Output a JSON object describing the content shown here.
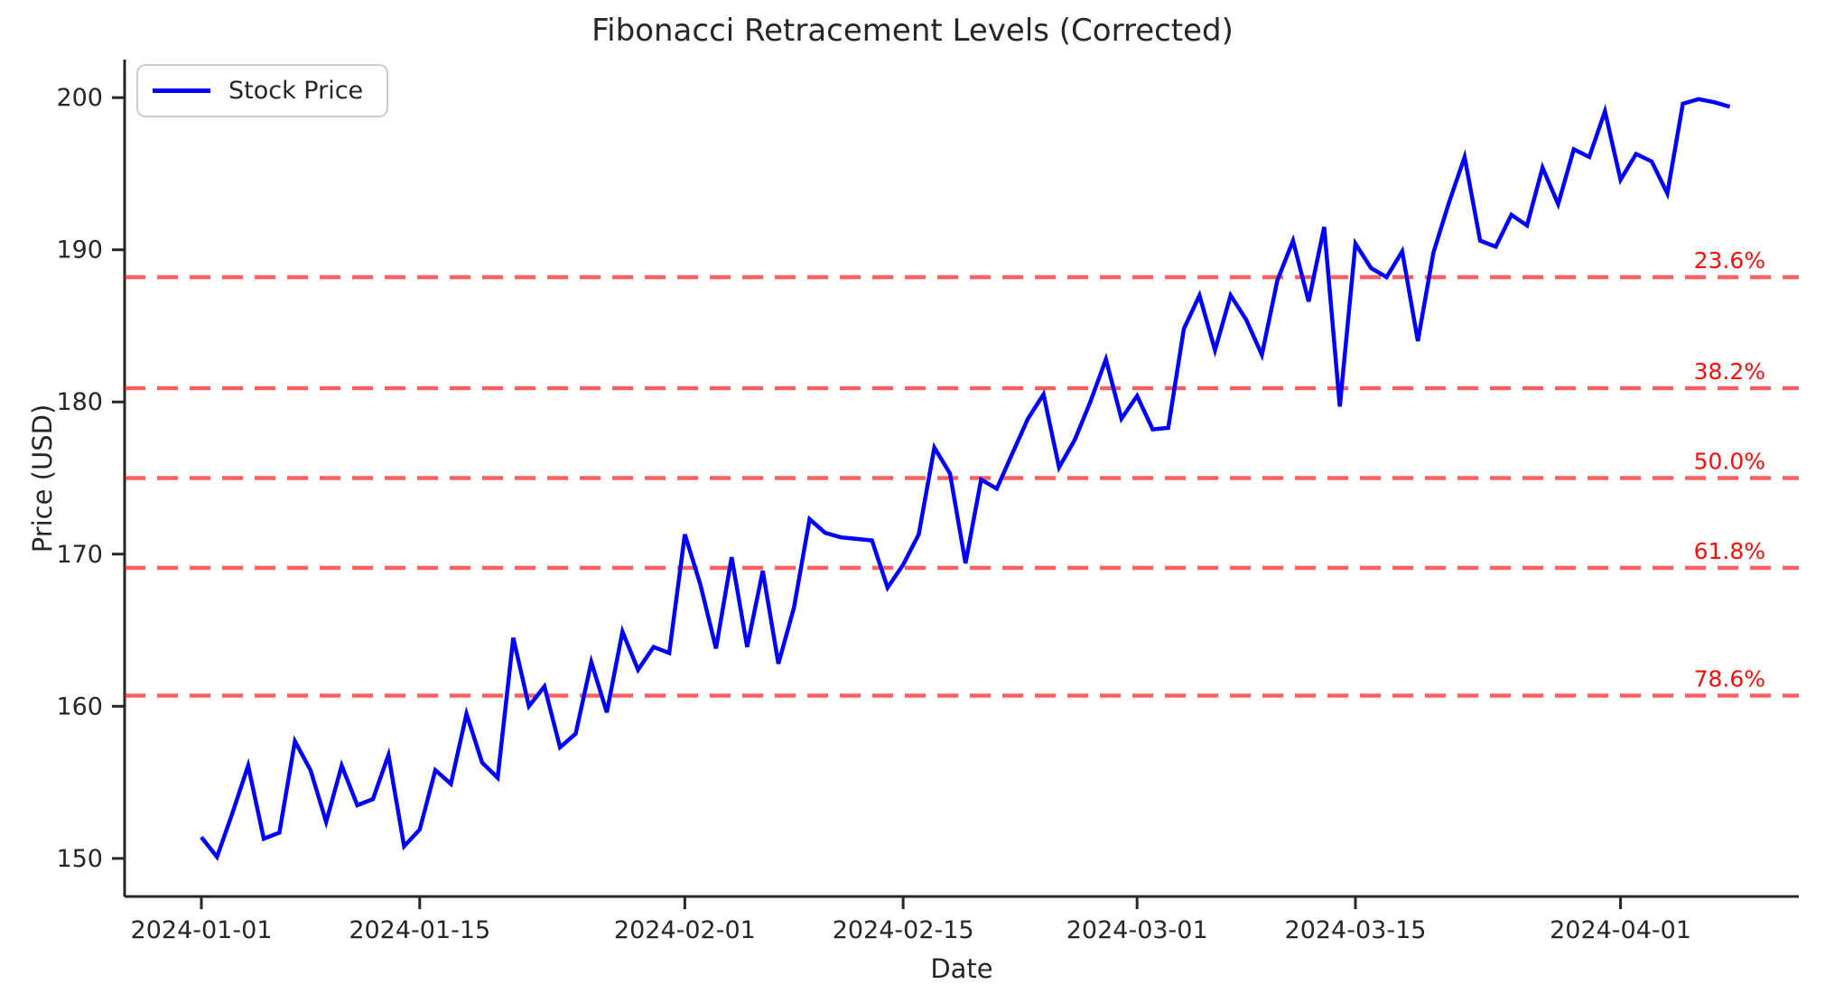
{
  "figure": {
    "title": "Fibonacci Retracement Levels (Corrected)",
    "xlabel": "Date",
    "ylabel": "Price (USD)",
    "legend": {
      "label": "Stock Price"
    }
  },
  "colors": {
    "price_line": "#0000ff",
    "fib_line": "rgba(255,0,0,0.62)",
    "fib_label": "#ff0b0b",
    "axis": "#262626",
    "tick_label": "#262626",
    "legend_border": "#cccccc"
  },
  "chart_data": {
    "type": "line",
    "title": "Fibonacci Retracement Levels (Corrected)",
    "xlabel": "Date",
    "ylabel": "Price (USD)",
    "legend_position": "upper left",
    "grid": false,
    "start_date": "2024-01-01",
    "frequency": "daily",
    "end_date": "2024-04-08",
    "ylim": [
      147.5,
      202.5
    ],
    "yticks": [
      150,
      160,
      170,
      180,
      190,
      200
    ],
    "xticks": [
      {
        "day": 0,
        "label": "2024-01-01"
      },
      {
        "day": 14,
        "label": "2024-01-15"
      },
      {
        "day": 31,
        "label": "2024-02-01"
      },
      {
        "day": 45,
        "label": "2024-02-15"
      },
      {
        "day": 60,
        "label": "2024-03-01"
      },
      {
        "day": 74,
        "label": "2024-03-15"
      },
      {
        "day": 91,
        "label": "2024-04-01"
      }
    ],
    "series": [
      {
        "name": "Stock Price",
        "style": "solid",
        "values": [
          151.4,
          150.1,
          153.0,
          156.1,
          151.3,
          151.7,
          157.7,
          155.8,
          152.4,
          156.1,
          153.5,
          153.9,
          156.8,
          150.8,
          151.9,
          155.8,
          154.9,
          159.5,
          156.3,
          155.3,
          164.5,
          160.0,
          161.3,
          157.3,
          158.2,
          162.9,
          159.6,
          164.9,
          162.4,
          163.9,
          163.5,
          171.3,
          168.0,
          163.8,
          169.8,
          163.9,
          168.9,
          162.8,
          166.5,
          172.3,
          171.4,
          171.1,
          171.0,
          170.9,
          167.8,
          169.3,
          171.3,
          177.0,
          175.3,
          169.4,
          174.9,
          174.3,
          176.6,
          178.9,
          180.5,
          175.7,
          177.5,
          180.0,
          182.8,
          178.9,
          180.4,
          178.2,
          178.3,
          184.8,
          187.0,
          183.4,
          187.0,
          185.4,
          183.1,
          188.0,
          190.6,
          186.6,
          191.5,
          179.7,
          190.4,
          188.8,
          188.2,
          189.9,
          184.0,
          189.8,
          193.1,
          196.1,
          190.6,
          190.2,
          192.3,
          191.6,
          195.4,
          193.0,
          196.6,
          196.1,
          199.1,
          194.6,
          196.3,
          195.8,
          193.7,
          199.6,
          199.9,
          199.7,
          199.4
        ]
      }
    ],
    "fibonacci_levels": {
      "swing_high": 200.0,
      "swing_low": 150.0,
      "levels": [
        {
          "label": "23.6%",
          "value": 188.2
        },
        {
          "label": "38.2%",
          "value": 180.9
        },
        {
          "label": "50.0%",
          "value": 175.0
        },
        {
          "label": "61.8%",
          "value": 169.1
        },
        {
          "label": "78.6%",
          "value": 160.7
        }
      ]
    }
  }
}
